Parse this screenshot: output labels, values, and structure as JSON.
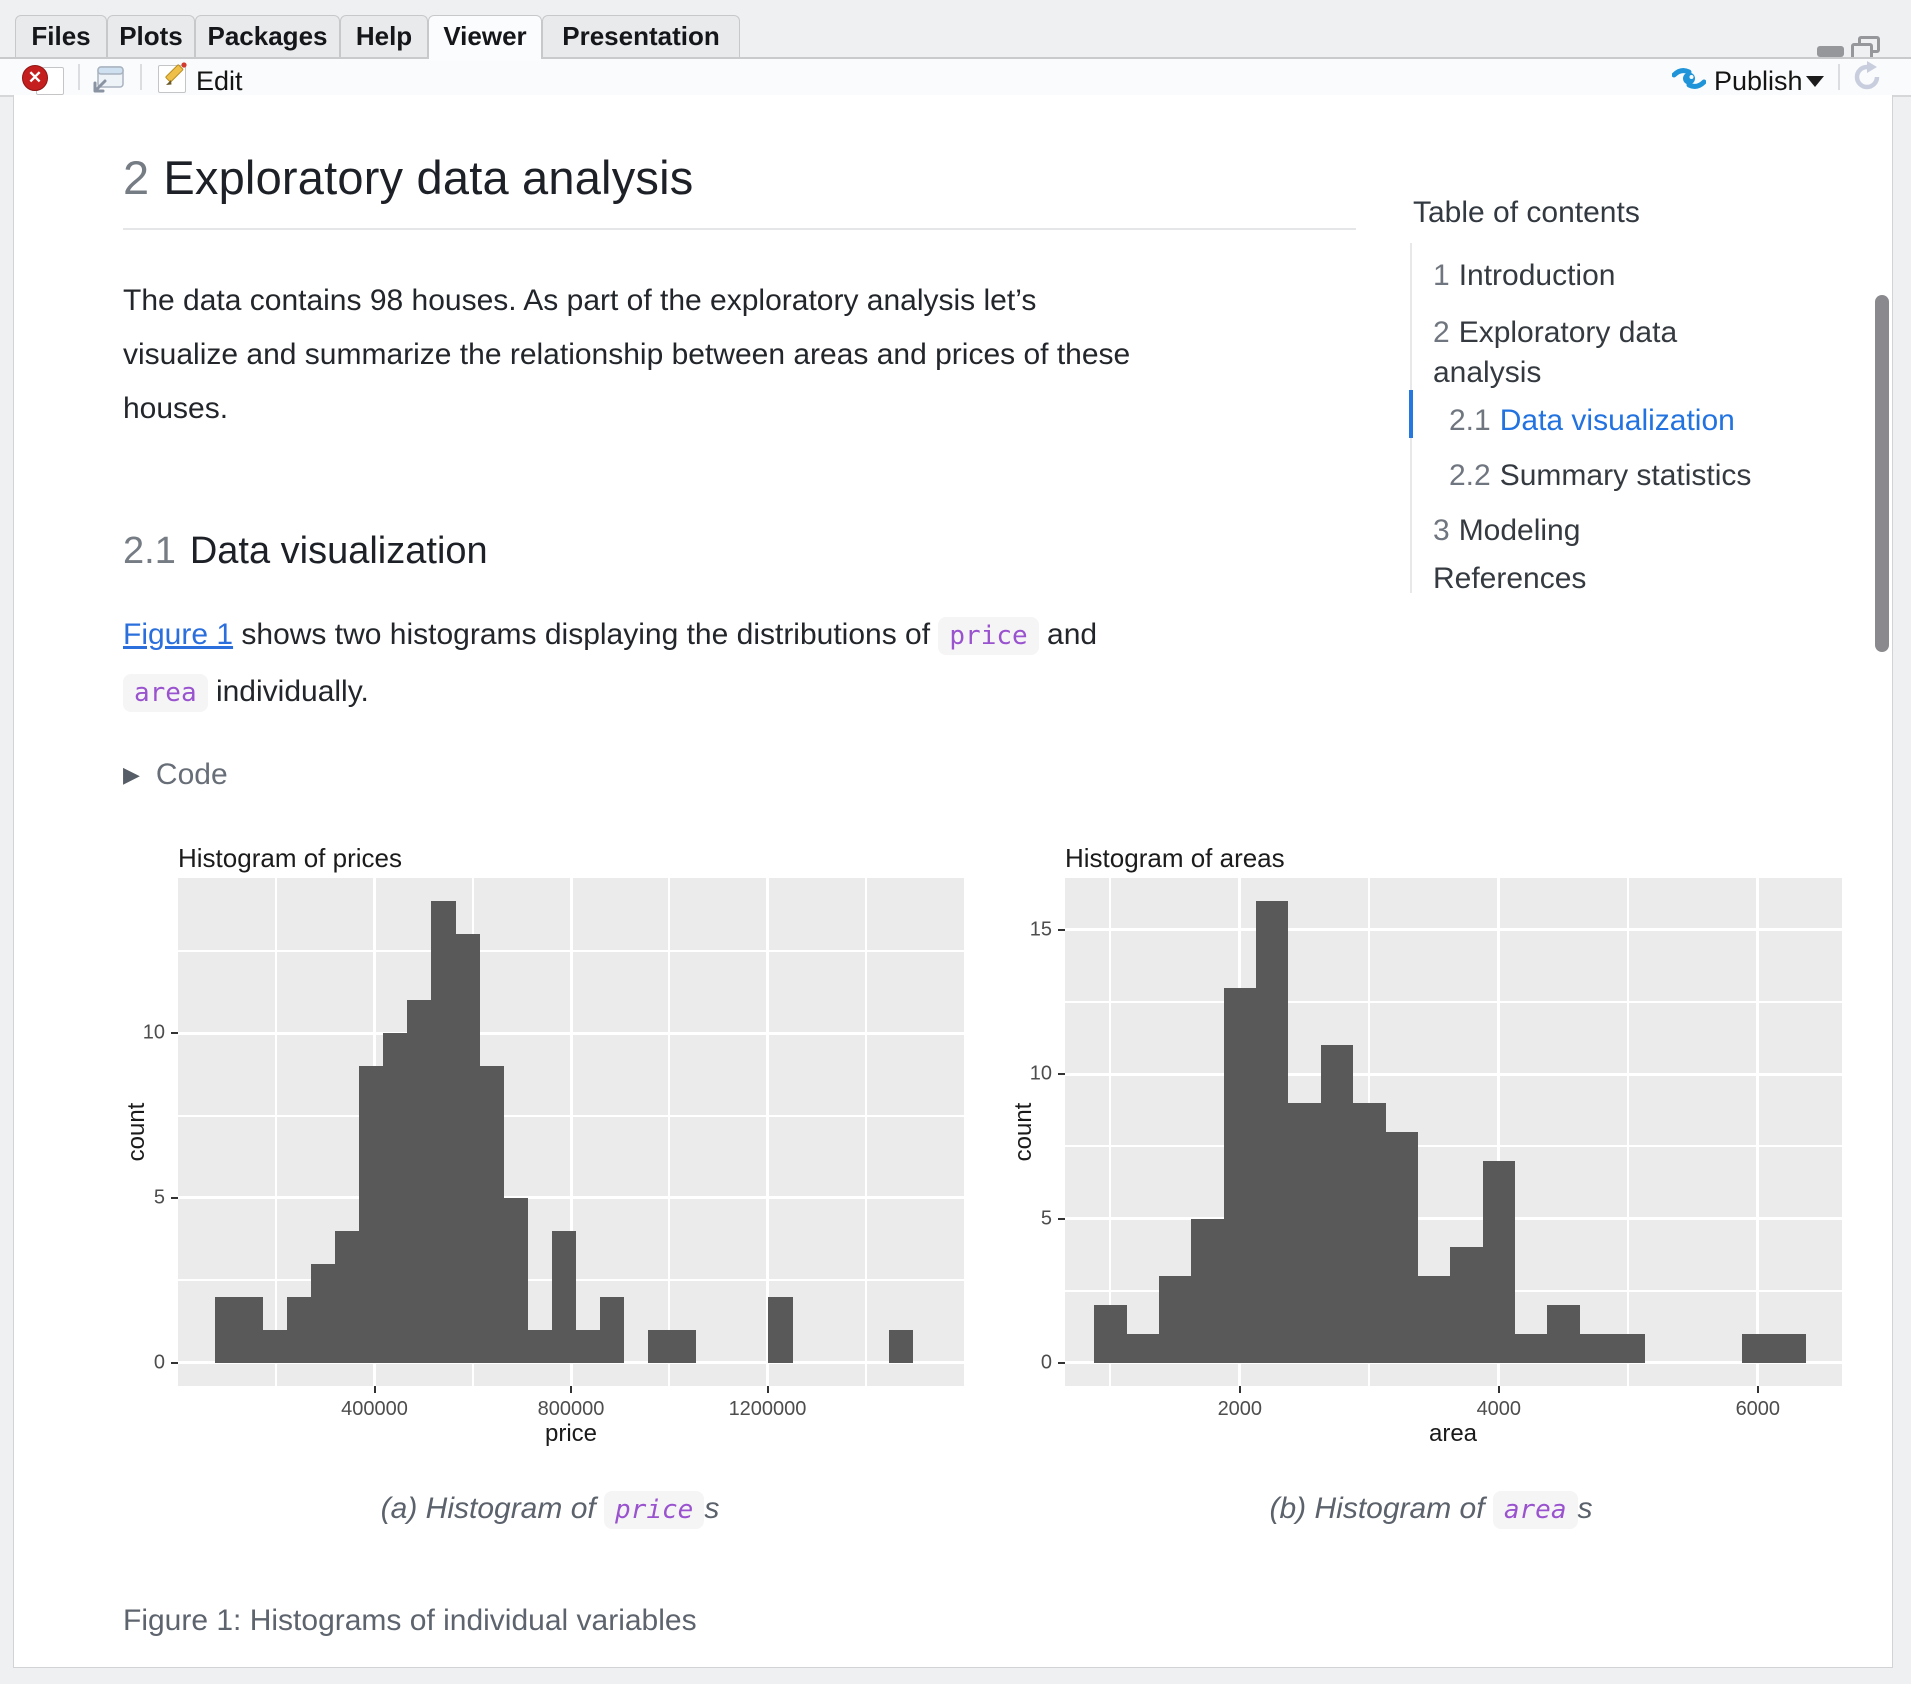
{
  "window": {
    "tabs": [
      {
        "label": "Files"
      },
      {
        "label": "Plots"
      },
      {
        "label": "Packages"
      },
      {
        "label": "Help"
      },
      {
        "label": "Viewer"
      },
      {
        "label": "Presentation"
      }
    ],
    "active_tab": "Viewer",
    "toolbar": {
      "edit_label": "Edit",
      "publish_label": "Publish"
    }
  },
  "toc": {
    "title": "Table of contents",
    "items": [
      {
        "num": "1",
        "label": "Introduction",
        "level": 1,
        "active": false
      },
      {
        "num": "2",
        "label": "Exploratory data analysis",
        "level": 1,
        "active": false
      },
      {
        "num": "2.1",
        "label": "Data visualization",
        "level": 2,
        "active": true
      },
      {
        "num": "2.2",
        "label": "Summary statistics",
        "level": 2,
        "active": false
      },
      {
        "num": "3",
        "label": "Modeling",
        "level": 1,
        "active": false
      },
      {
        "num": "",
        "label": "References",
        "level": 1,
        "active": false
      }
    ]
  },
  "article": {
    "h1_number": "2",
    "h1_title": "Exploratory data analysis",
    "p1_line1": "The data contains 98 houses. As part of the exploratory analysis let’s",
    "p1_line2": "visualize and summarize the relationship between areas and prices of these",
    "p1_line3": "houses.",
    "h2_number": "2.1",
    "h2_title": "Data visualization",
    "p2_link": "Figure 1",
    "p2_mid": " shows two histograms displaying the distributions of ",
    "p2_code1": "price",
    "p2_and": " and",
    "p2_code2": "area",
    "p2_end": " individually.",
    "code_summary": "Code",
    "subcap_a_pre": "(a) Histogram of ",
    "subcap_a_code": "price",
    "subcap_a_post": "s",
    "subcap_b_pre": "(b) Histogram of ",
    "subcap_b_code": "area",
    "subcap_b_post": "s",
    "fig_caption": "Figure 1: Histograms of individual variables"
  },
  "chart_data": [
    {
      "type": "bar",
      "subtype": "histogram",
      "title": "Histogram of prices",
      "xlabel": "price",
      "ylabel": "count",
      "bin_start": 75000,
      "bin_width": 49000,
      "counts": [
        2,
        2,
        1,
        2,
        3,
        4,
        9,
        10,
        11,
        14,
        13,
        9,
        5,
        1,
        4,
        1,
        2,
        0,
        1,
        1,
        0,
        0,
        0,
        2,
        0,
        0,
        0,
        0,
        1
      ],
      "total_count": 98,
      "x_range": [
        0,
        1600000
      ],
      "y_range": [
        -0.7,
        14.7
      ],
      "x_ticks": [
        400000,
        800000,
        1200000
      ],
      "x_tick_labels": [
        "400000",
        "800000",
        "1200000"
      ],
      "x_minor": [
        200000,
        600000,
        1000000,
        1400000
      ],
      "y_ticks": [
        0,
        5,
        10
      ],
      "y_tick_labels": [
        "0",
        "5",
        "10"
      ],
      "y_minor": [
        2.5,
        7.5,
        12.5
      ],
      "grid": true,
      "legend": "none",
      "bar_color": "#595959",
      "panel_bg": "#ebebeb",
      "grid_color": "#ffffff"
    },
    {
      "type": "bar",
      "subtype": "histogram",
      "title": "Histogram of areas",
      "xlabel": "area",
      "ylabel": "count",
      "bin_start": 875,
      "bin_width": 250,
      "counts": [
        2,
        1,
        3,
        5,
        13,
        16,
        9,
        11,
        9,
        8,
        3,
        4,
        7,
        1,
        2,
        1,
        1,
        0,
        0,
        0,
        1,
        1
      ],
      "total_count": 98,
      "x_range": [
        650,
        6650
      ],
      "y_range": [
        -0.8,
        16.8
      ],
      "x_ticks": [
        2000,
        4000,
        6000
      ],
      "x_tick_labels": [
        "2000",
        "4000",
        "6000"
      ],
      "x_minor": [
        1000,
        3000,
        5000
      ],
      "y_ticks": [
        0,
        5,
        10,
        15
      ],
      "y_tick_labels": [
        "0",
        "5",
        "10",
        "15"
      ],
      "y_minor": [
        2.5,
        7.5,
        12.5
      ],
      "grid": true,
      "legend": "none",
      "bar_color": "#595959",
      "panel_bg": "#ebebeb",
      "grid_color": "#ffffff"
    }
  ],
  "colors": {
    "chrome_bg": "#eff0f2",
    "tab_inactive": "#e9eaec",
    "tab_active": "#fbfcfd",
    "tab_border": "#c7c8ca",
    "pane_border": "#d2d3d5",
    "link_blue": "#2b6fdd",
    "toc_active_blue": "#2273e0",
    "code_purple": "#9a53ce",
    "code_chip_bg": "#f5f5f6",
    "muted_text": "#5d646d",
    "bar_fill": "#595959",
    "panel_bg": "#ebebeb",
    "publish_blue": "#2094d8",
    "clear_red": "#c41e1e",
    "scroll_thumb": "#8a8a8e"
  }
}
